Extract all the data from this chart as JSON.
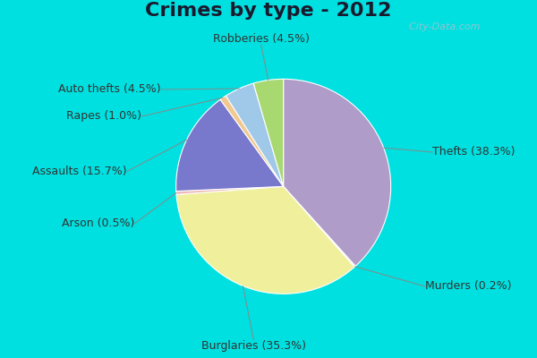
{
  "title": "Crimes by type - 2012",
  "slices": [
    {
      "label": "Thefts (38.3%)",
      "value": 38.3,
      "color": "#b09cc8"
    },
    {
      "label": "Murders (0.2%)",
      "value": 0.2,
      "color": "#ccdcaa"
    },
    {
      "label": "Burglaries (35.3%)",
      "value": 35.3,
      "color": "#f0f09c"
    },
    {
      "label": "Arson (0.5%)",
      "value": 0.5,
      "color": "#f0b8b8"
    },
    {
      "label": "Assaults (15.7%)",
      "value": 15.7,
      "color": "#7878cc"
    },
    {
      "label": "Rapes (1.0%)",
      "value": 1.0,
      "color": "#f0c890"
    },
    {
      "label": "Auto thefts (4.5%)",
      "value": 4.5,
      "color": "#a0c8e8"
    },
    {
      "label": "Robberies (4.5%)",
      "value": 4.5,
      "color": "#a8d870"
    }
  ],
  "bg_color_top": "#00e0e0",
  "bg_color_inner": "#d0e8d0",
  "title_fontsize": 16,
  "label_fontsize": 9,
  "watermark": "  City-Data.com",
  "startangle": 90
}
